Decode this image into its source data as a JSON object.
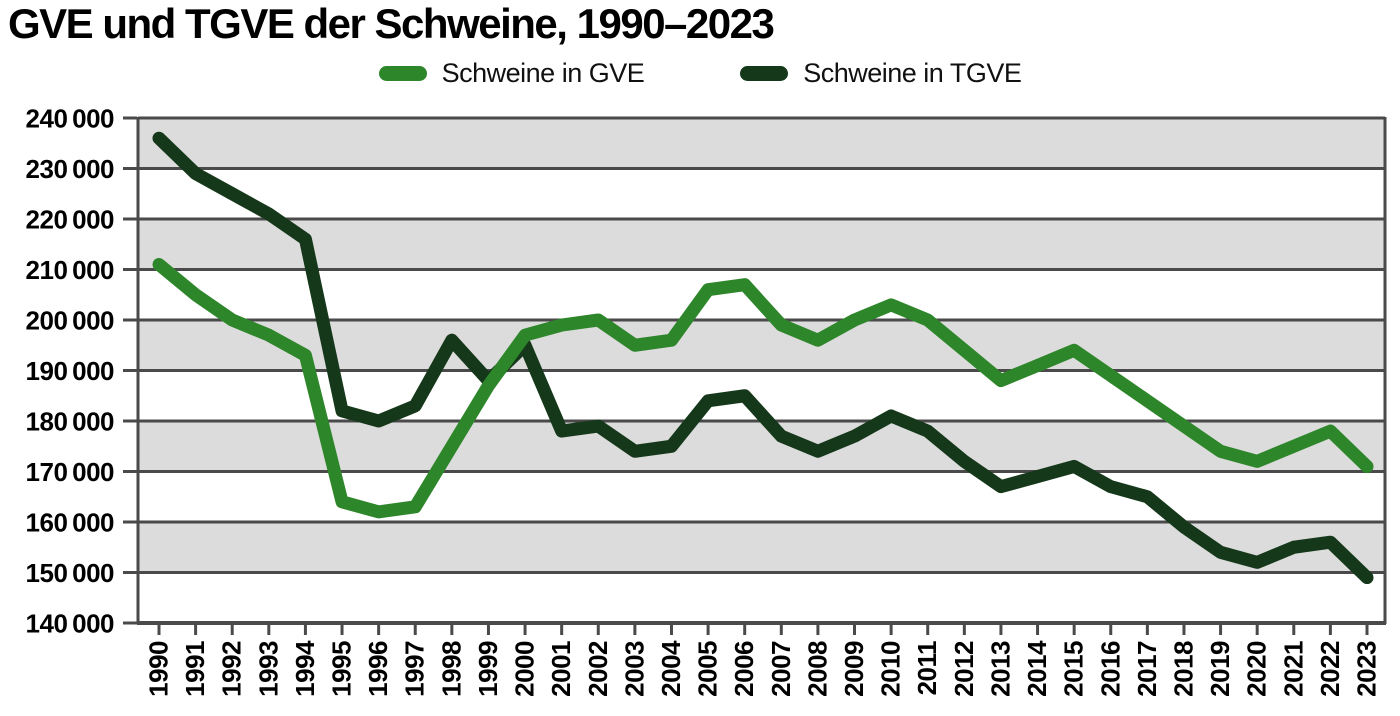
{
  "title": "GVE und TGVE der Schweine, 1990–2023",
  "colors": {
    "gve_green": "#2e862b",
    "tgve_dark_green": "#16381a",
    "band_gray": "#dcdcdc",
    "grid_line": "#4a4a4a",
    "axis_line": "#4a4a4a",
    "text": "#000000"
  },
  "chart_data": {
    "type": "line",
    "title": "GVE und TGVE der Schweine, 1990–2023",
    "xlabel": "",
    "ylabel": "",
    "x": [
      1990,
      1991,
      1992,
      1993,
      1994,
      1995,
      1996,
      1997,
      1998,
      1999,
      2000,
      2001,
      2002,
      2003,
      2004,
      2005,
      2006,
      2007,
      2008,
      2009,
      2010,
      2011,
      2012,
      2013,
      2014,
      2015,
      2016,
      2017,
      2018,
      2019,
      2020,
      2021,
      2022,
      2023
    ],
    "series": [
      {
        "name": "Schweine in GVE",
        "color": "#2e862b",
        "values": [
          211000,
          205000,
          200000,
          197000,
          193000,
          164000,
          162000,
          163000,
          175000,
          187000,
          197000,
          199000,
          200000,
          195000,
          196000,
          206000,
          207000,
          199000,
          196000,
          200000,
          203000,
          200000,
          194000,
          188000,
          191000,
          194000,
          189000,
          184000,
          179000,
          174000,
          172000,
          175000,
          178000,
          171000
        ]
      },
      {
        "name": "Schweine in TGVE",
        "color": "#16381a",
        "values": [
          236000,
          229000,
          225000,
          221000,
          216000,
          182000,
          180000,
          183000,
          196000,
          188000,
          195000,
          178000,
          179000,
          174000,
          175000,
          184000,
          185000,
          177000,
          174000,
          177000,
          181000,
          178000,
          172000,
          167000,
          169000,
          171000,
          167000,
          165000,
          159000,
          154000,
          152000,
          155000,
          156000,
          149000
        ]
      }
    ],
    "ylim": [
      140000,
      240000
    ],
    "ytick_step": 10000,
    "ytick_format": "space-thousands",
    "grid": "horizontal",
    "alternating_bands": true,
    "band_color": "#dcdcdc",
    "legend_position": "top-center",
    "x_tick_label_rotation": -90
  }
}
